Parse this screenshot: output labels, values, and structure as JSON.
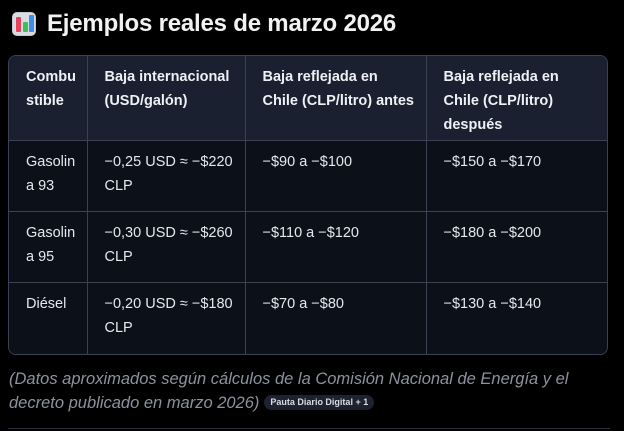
{
  "heading": {
    "icon": "bar-chart-icon",
    "title": "Ejemplos reales de marzo 2026"
  },
  "table": {
    "headers": [
      "Combustible",
      "Baja internacional (USD/galón)",
      "Baja reflejada en Chile (CLP/litro) antes",
      "Baja reflejada en Chile (CLP/litro) después"
    ],
    "rows": [
      [
        "Gasolina 93",
        "−0,25 USD ≈ −$220 CLP",
        "−$90 a −$100",
        "−$150 a −$170"
      ],
      [
        "Gasolina 95",
        "−0,30 USD ≈ −$260 CLP",
        "−$110 a −$120",
        "−$180 a −$200"
      ],
      [
        "Diésel",
        "−0,20 USD ≈ −$180 CLP",
        "−$70 a −$80",
        "−$130 a −$140"
      ]
    ]
  },
  "footnote": {
    "text": "(Datos aproximados según cálculos de la Comisión Nacional de Energía y el decreto publicado en marzo 2026)",
    "source_badge": "Pauta Diario Digital + 1"
  },
  "colors": {
    "background": "#000000",
    "header_bg": "#1a2030",
    "cell_bg": "#0c1019",
    "border": "#3c4254",
    "note_text": "#8d929e"
  }
}
